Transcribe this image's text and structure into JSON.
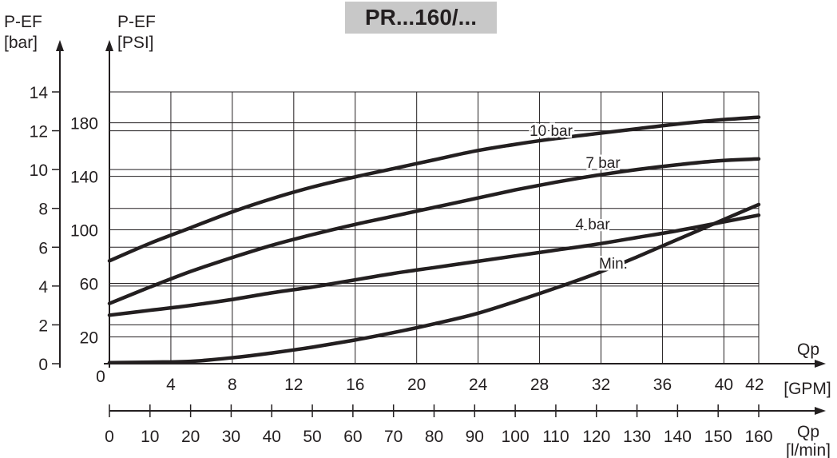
{
  "chart_data": {
    "type": "line",
    "title": "PR...160/...",
    "y_left": {
      "label_line1": "P-EF",
      "label_line2": "[bar]",
      "ticks": [
        0,
        2,
        4,
        6,
        8,
        10,
        12,
        14
      ],
      "range": [
        0,
        14.5
      ]
    },
    "y_psi": {
      "label_line1": "P-EF",
      "label_line2": "[PSI]",
      "ticks": [
        20,
        60,
        100,
        140,
        180
      ]
    },
    "x_gpm": {
      "label": "Qp",
      "unit": "[GPM]",
      "origin_label": "0",
      "ticks": [
        4,
        8,
        12,
        16,
        20,
        24,
        28,
        32,
        36,
        40,
        42
      ]
    },
    "x_lmin": {
      "label": "Qp",
      "unit": "[l/min]",
      "ticks": [
        0,
        10,
        20,
        30,
        40,
        50,
        60,
        70,
        80,
        90,
        100,
        110,
        120,
        130,
        140,
        150,
        160
      ],
      "range": [
        0,
        160
      ]
    },
    "grid": true,
    "series": [
      {
        "name": "10 bar",
        "x": [
          0,
          10,
          20,
          30,
          40,
          50,
          60,
          70,
          80,
          90,
          100,
          110,
          120,
          130,
          140,
          150,
          160
        ],
        "y": [
          5.3,
          6.2,
          7.0,
          7.8,
          8.5,
          9.1,
          9.6,
          10.05,
          10.5,
          10.95,
          11.3,
          11.6,
          11.85,
          12.1,
          12.35,
          12.55,
          12.7
        ]
      },
      {
        "name": "7 bar",
        "x": [
          0,
          10,
          20,
          30,
          40,
          50,
          60,
          70,
          80,
          90,
          100,
          110,
          120,
          130,
          140,
          150,
          160
        ],
        "y": [
          3.1,
          3.95,
          4.75,
          5.45,
          6.1,
          6.65,
          7.15,
          7.6,
          8.05,
          8.5,
          8.95,
          9.35,
          9.7,
          10.0,
          10.25,
          10.45,
          10.55
        ]
      },
      {
        "name": "4 bar",
        "x": [
          0,
          10,
          20,
          30,
          40,
          50,
          60,
          70,
          80,
          90,
          100,
          110,
          120,
          130,
          140,
          150,
          160
        ],
        "y": [
          2.5,
          2.75,
          3.0,
          3.3,
          3.65,
          3.95,
          4.3,
          4.65,
          4.95,
          5.25,
          5.55,
          5.85,
          6.15,
          6.5,
          6.85,
          7.25,
          7.65
        ]
      },
      {
        "name": "Min.",
        "x": [
          0,
          10,
          20,
          30,
          40,
          50,
          60,
          70,
          80,
          90,
          100,
          110,
          120,
          130,
          140,
          150,
          160
        ],
        "y": [
          0.05,
          0.08,
          0.12,
          0.3,
          0.55,
          0.85,
          1.2,
          1.6,
          2.05,
          2.55,
          3.2,
          3.9,
          4.65,
          5.5,
          6.4,
          7.3,
          8.2
        ]
      }
    ]
  }
}
